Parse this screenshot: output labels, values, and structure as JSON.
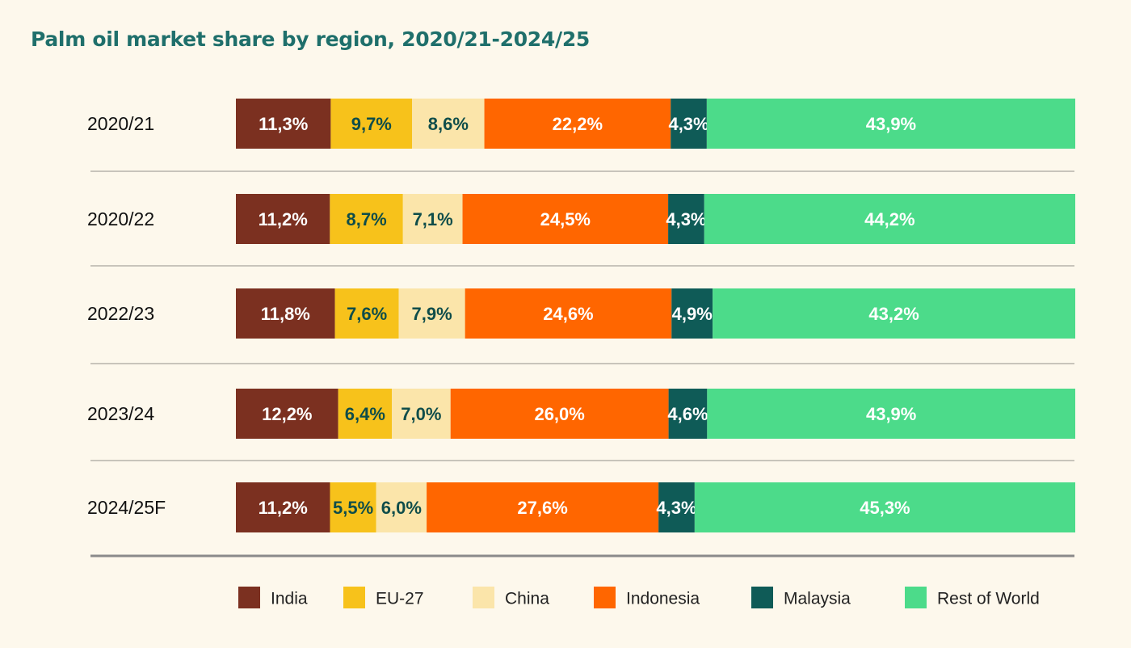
{
  "title": "Palm oil market share by region, 2020/21-2024/25",
  "chart_data": {
    "type": "bar",
    "orientation": "horizontal",
    "stacked": true,
    "normalized": true,
    "title": "Palm oil market share by region, 2020/21-2024/25",
    "categories": [
      "2020/21",
      "2020/22",
      "2022/23",
      "2023/24",
      "2024/25F"
    ],
    "series": [
      {
        "name": "India",
        "color": "#7b3020",
        "label_color": "#ffffff",
        "values": [
          11.3,
          11.2,
          11.8,
          12.2,
          11.2
        ],
        "labels": [
          "11,3%",
          "11,2%",
          "11,8%",
          "12,2%",
          "11,2%"
        ]
      },
      {
        "name": "EU-27",
        "color": "#f7c21b",
        "label_color": "#0f4d4a",
        "values": [
          9.7,
          8.7,
          7.6,
          6.4,
          5.5
        ],
        "labels": [
          "9,7%",
          "8,7%",
          "7,6%",
          "6,4%",
          "5,5%"
        ]
      },
      {
        "name": "China",
        "color": "#fbe5aa",
        "label_color": "#0f4d4a",
        "values": [
          8.6,
          7.1,
          7.9,
          7.0,
          6.0
        ],
        "labels": [
          "8,6%",
          "7,1%",
          "7,9%",
          "7,0%",
          "6,0%"
        ]
      },
      {
        "name": "Indonesia",
        "color": "#ff6600",
        "label_color": "#ffffff",
        "values": [
          22.2,
          24.5,
          24.6,
          26.0,
          27.6
        ],
        "labels": [
          "22,2%",
          "24,5%",
          "24,6%",
          "26,0%",
          "27,6%"
        ]
      },
      {
        "name": "Malaysia",
        "color": "#0f5b57",
        "label_color": "#ffffff",
        "values": [
          4.3,
          4.3,
          4.9,
          4.6,
          4.3
        ],
        "labels": [
          "4,3%",
          "4,3%",
          "4,9%",
          "4,6%",
          "4,3%"
        ]
      },
      {
        "name": "Rest of World",
        "color": "#4cdb8a",
        "label_color": "#ffffff",
        "values": [
          43.9,
          44.2,
          43.2,
          43.9,
          45.3
        ],
        "labels": [
          "43,9%",
          "44,2%",
          "43,2%",
          "43,9%",
          "45,3%"
        ]
      }
    ],
    "legend_position": "bottom",
    "grid": false
  }
}
